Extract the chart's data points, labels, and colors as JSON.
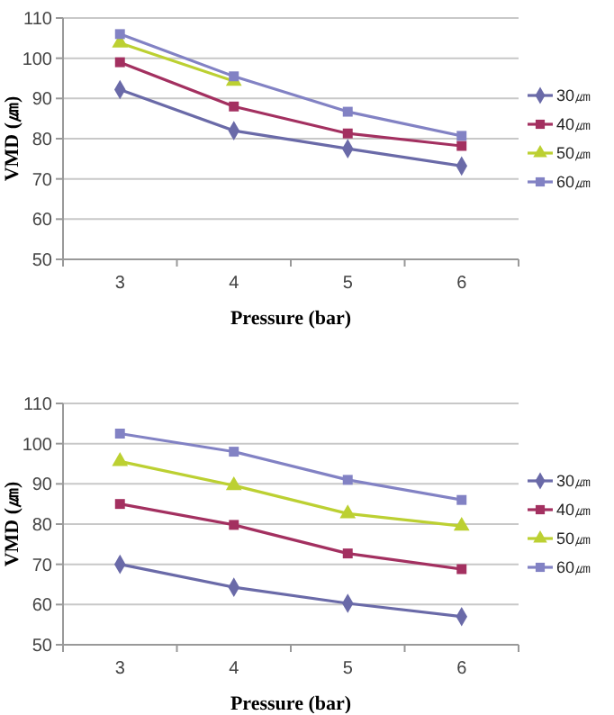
{
  "chart_data": [
    {
      "type": "line",
      "categories": [
        "3",
        "4",
        "5",
        "6"
      ],
      "xlabel": "Pressure (bar)",
      "ylabel": "VMD (㎛)",
      "ylim": [
        50,
        110
      ],
      "yticks": [
        50,
        60,
        70,
        80,
        90,
        100,
        110
      ],
      "grid": "y",
      "legend": "right",
      "series": [
        {
          "name": "30㎛",
          "color": "#6a6aa8",
          "marker": "diamond",
          "values": [
            92.2,
            82,
            77.5,
            73.2
          ]
        },
        {
          "name": "40㎛",
          "color": "#a33060",
          "marker": "square",
          "values": [
            99,
            88,
            81.3,
            78.2
          ]
        },
        {
          "name": "50㎛",
          "color": "#bcd032",
          "marker": "triangle",
          "values": [
            103.8,
            94.3,
            null,
            null
          ]
        },
        {
          "name": "60㎛",
          "color": "#8282c4",
          "marker": "square",
          "values": [
            106,
            95.5,
            86.7,
            80.7
          ]
        }
      ]
    },
    {
      "type": "line",
      "categories": [
        "3",
        "4",
        "5",
        "6"
      ],
      "xlabel": "Pressure (bar)",
      "ylabel": "VMD (㎛)",
      "ylim": [
        50,
        110
      ],
      "yticks": [
        50,
        60,
        70,
        80,
        90,
        100,
        110
      ],
      "grid": "y",
      "legend": "right",
      "series": [
        {
          "name": "30㎛",
          "color": "#6a6aa8",
          "marker": "diamond",
          "values": [
            70,
            64.3,
            60.3,
            57
          ]
        },
        {
          "name": "40㎛",
          "color": "#a33060",
          "marker": "square",
          "values": [
            85,
            79.8,
            72.7,
            68.8
          ]
        },
        {
          "name": "50㎛",
          "color": "#bcd032",
          "marker": "triangle",
          "values": [
            95.6,
            89.6,
            82.6,
            79.5
          ]
        },
        {
          "name": "60㎛",
          "color": "#8282c4",
          "marker": "square",
          "values": [
            102.5,
            98,
            91,
            86
          ]
        }
      ]
    }
  ]
}
